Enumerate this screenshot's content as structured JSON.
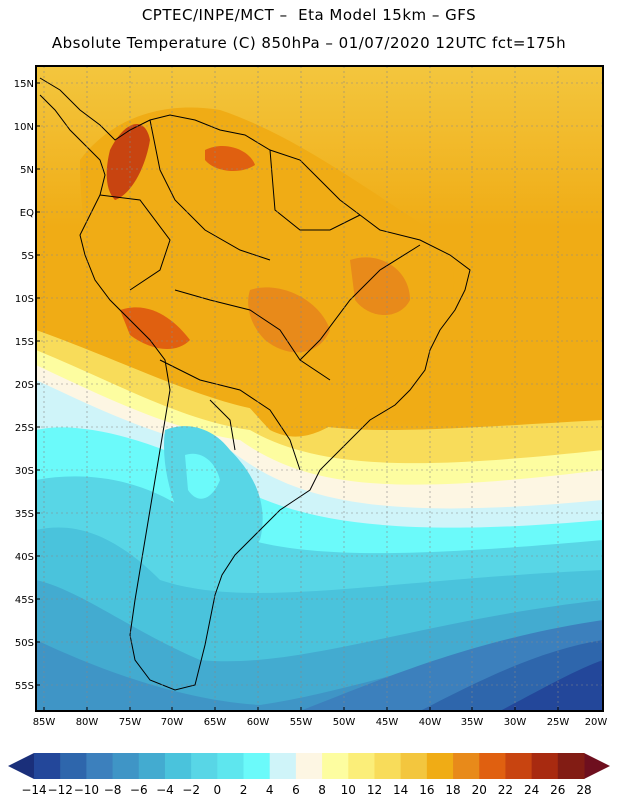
{
  "header": {
    "title_line1": "CPTEC/INPE/MCT –  Eta Model 15km – GFS",
    "title_line2": "Absolute Temperature (C) 850hPa – 01/07/2020 12UTC fct=175h"
  },
  "map": {
    "lat_labels": [
      "15N",
      "10N",
      "5N",
      "EQ",
      "5S",
      "10S",
      "15S",
      "20S",
      "25S",
      "30S",
      "35S",
      "40S",
      "45S",
      "50S",
      "55S"
    ],
    "lon_labels": [
      "85W",
      "80W",
      "75W",
      "70W",
      "65W",
      "60W",
      "55W",
      "50W",
      "45W",
      "40W",
      "35W",
      "30W",
      "25W",
      "20W"
    ]
  },
  "colorbar": {
    "labels": [
      "-14",
      "-12",
      "-10",
      "-8",
      "-6",
      "-4",
      "-2",
      "0",
      "2",
      "4",
      "6",
      "8",
      "10",
      "12",
      "14",
      "16",
      "18",
      "20",
      "22",
      "24",
      "26",
      "28"
    ],
    "colors": [
      "#1a2f7a",
      "#23479a",
      "#2e66ac",
      "#3c80bd",
      "#3f95c6",
      "#43abd0",
      "#4ac3dc",
      "#58d6e6",
      "#5ee6ee",
      "#6bfafa",
      "#cff4f9",
      "#fdf6e3",
      "#fdfda0",
      "#fbee79",
      "#f8dc5a",
      "#f3c63e",
      "#f0ac15",
      "#e88a1a",
      "#e06010",
      "#c84410",
      "#a82a10",
      "#821c14",
      "#6e0f1e"
    ]
  }
}
